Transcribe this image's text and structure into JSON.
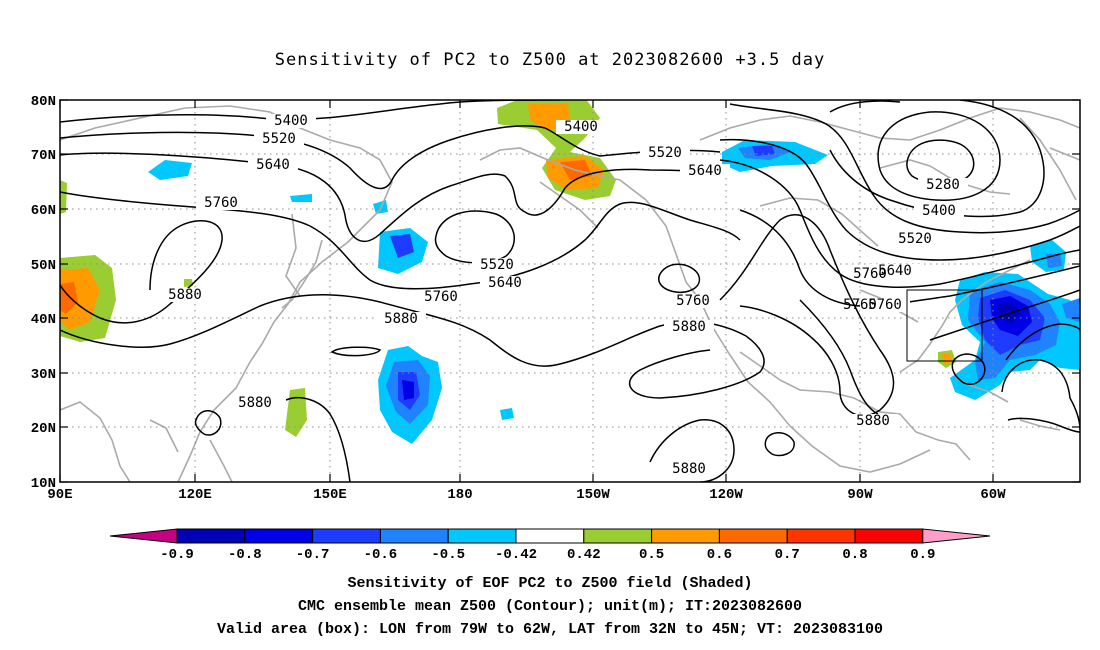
{
  "title": "Sensitivity of PC2 to Z500 at 2023082600 +3.5 day",
  "axes": {
    "lat_ticks": [
      "80N",
      "70N",
      "60N",
      "50N",
      "40N",
      "30N",
      "20N",
      "10N"
    ],
    "lon_ticks": [
      "90E",
      "120E",
      "150E",
      "180",
      "150W",
      "120W",
      "90W",
      "60W"
    ]
  },
  "colorbar": {
    "labels": [
      "-0.9",
      "-0.8",
      "-0.7",
      "-0.6",
      "-0.5",
      "-0.42",
      "0.42",
      "0.5",
      "0.6",
      "0.7",
      "0.8",
      "0.9"
    ],
    "colors": [
      "#c40083",
      "#0000b4",
      "#0000e6",
      "#1e3cff",
      "#1f82ff",
      "#00c8ff",
      "#ffffff",
      "#9acd32",
      "#ff9a00",
      "#ff6a00",
      "#ff3500",
      "#ff0000",
      "#ff9ec8"
    ]
  },
  "contour_labels": [
    "5400",
    "5520",
    "5640",
    "5760",
    "5880",
    "5400",
    "5520",
    "5640",
    "5520",
    "5640",
    "5760",
    "5760",
    "5880",
    "5880",
    "5760",
    "5880",
    "5880",
    "5280",
    "5400",
    "5520",
    "5640",
    "5760",
    "5880",
    "5760"
  ],
  "valid_box": {
    "lon_from": "79W",
    "lon_to": "62W",
    "lat_from": "32N",
    "lat_to": "45N"
  },
  "captions": [
    "Sensitivity of EOF PC2 to Z500 field (Shaded)",
    "CMC ensemble mean Z500 (Contour); unit(m); IT:2023082600",
    "Valid area (box): LON from 79W to 62W, LAT from 32N to 45N; VT: 2023083100"
  ]
}
